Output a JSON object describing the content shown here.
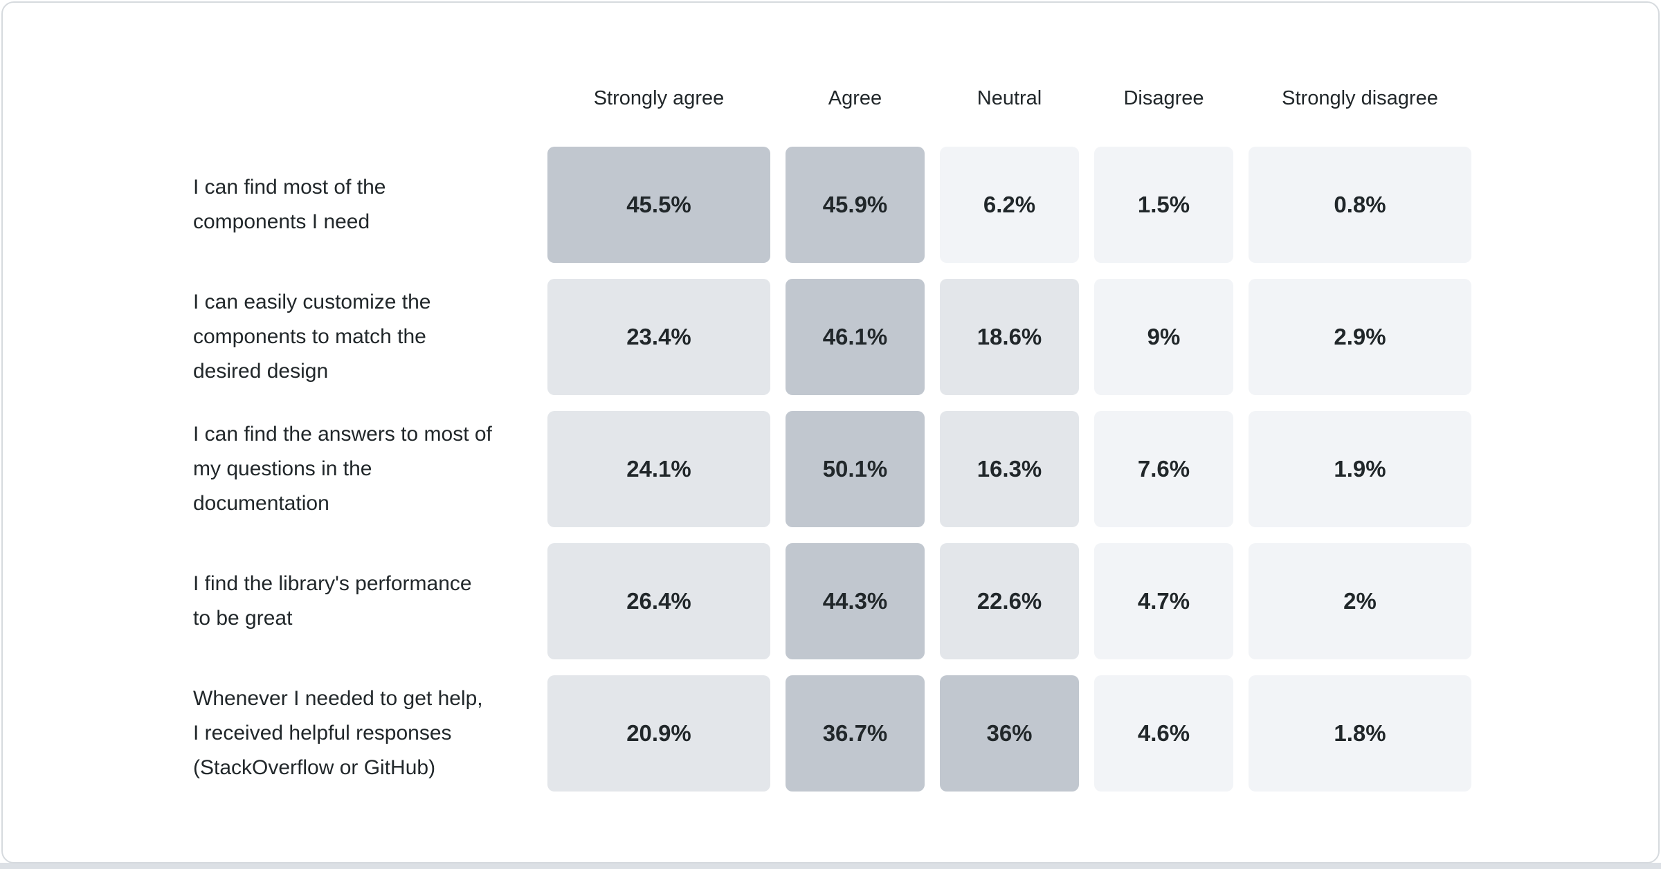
{
  "theme": {
    "card_background": "#ffffff",
    "card_border": "#d6dade",
    "bottom_strip": "#dce0e5",
    "text_color": "#21272a"
  },
  "chart_data": {
    "type": "heatmap",
    "title": "",
    "columns": [
      "Strongly agree",
      "Agree",
      "Neutral",
      "Disagree",
      "Strongly disagree"
    ],
    "rows": [
      {
        "label": "I can find most of the components I need",
        "values": [
          "45.5%",
          "45.9%",
          "6.2%",
          "1.5%",
          "0.8%"
        ]
      },
      {
        "label": "I can easily customize the components to match the desired design",
        "values": [
          "23.4%",
          "46.1%",
          "18.6%",
          "9%",
          "2.9%"
        ]
      },
      {
        "label": "I can find the answers to most of my questions in the documentation",
        "values": [
          "24.1%",
          "50.1%",
          "16.3%",
          "7.6%",
          "1.9%"
        ]
      },
      {
        "label": "I find the library's performance to be great",
        "values": [
          "26.4%",
          "44.3%",
          "22.6%",
          "4.7%",
          "2%"
        ]
      },
      {
        "label": "Whenever I needed to get help, I received helpful responses (StackOverflow or GitHub)",
        "values": [
          "20.9%",
          "36.7%",
          "36%",
          "4.6%",
          "1.8%"
        ]
      }
    ],
    "value_suffix": "%",
    "color_scale": {
      "note": "cell shade binned by percentage value",
      "bins": [
        {
          "max": 10,
          "color": "#f2f4f7"
        },
        {
          "max": 30,
          "color": "#e3e6ea"
        },
        {
          "max": 100,
          "color": "#c1c7cf"
        }
      ]
    },
    "layout": {
      "grid": false,
      "legend": "none"
    }
  }
}
